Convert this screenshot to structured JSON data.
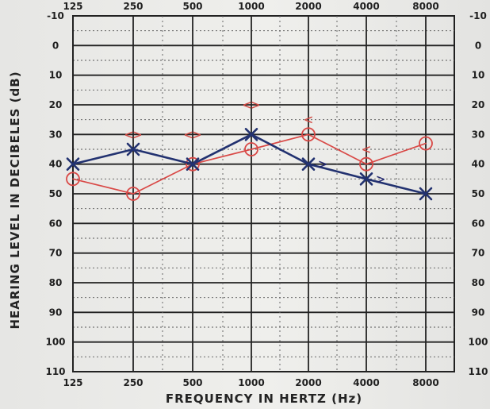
{
  "chart_data": {
    "type": "line",
    "xlabel": "FREQUENCY IN HERTZ (Hz)",
    "ylabel": "HEARING LEVEL IN DECIBELES (dB)",
    "x_ticks_top": [
      "125",
      "250",
      "500",
      "1000",
      "2000",
      "4000",
      "8000"
    ],
    "x_ticks_bottom": [
      "125",
      "250",
      "500",
      "1000",
      "2000",
      "4000",
      "8000"
    ],
    "y_ticks_left": [
      "-10",
      "0",
      "10",
      "20",
      "30",
      "40",
      "50",
      "60",
      "70",
      "80",
      "90",
      "100",
      "110"
    ],
    "y_ticks_right": [
      "-10",
      "0",
      "10",
      "20",
      "30",
      "40",
      "50",
      "60",
      "70",
      "80",
      "90",
      "100",
      "110"
    ],
    "ylim": [
      -10,
      110
    ],
    "series": [
      {
        "marker": "circle",
        "color": "#d94a46",
        "x": [
          125,
          250,
          500,
          1000,
          2000,
          4000,
          8000
        ],
        "y": [
          45,
          50,
          40,
          35,
          30,
          40,
          33
        ]
      },
      {
        "marker": "x",
        "color": "#223070",
        "x": [
          125,
          250,
          500,
          1000,
          2000,
          4000,
          8000
        ],
        "y": [
          40,
          35,
          40,
          30,
          40,
          45,
          50
        ]
      }
    ],
    "annotations": [
      {
        "text": "<>",
        "x": 250,
        "y": 30,
        "color": "#d24a44"
      },
      {
        "text": "<>",
        "x": 500,
        "y": 30,
        "color": "#d24a44"
      },
      {
        "text": "<>",
        "x": 1000,
        "y": 20,
        "color": "#d24a44"
      },
      {
        "text": "<",
        "x": 2000,
        "y": 25,
        "color": "#d24a44"
      },
      {
        "text": "<",
        "x": 4000,
        "y": 35,
        "color": "#d24a44"
      },
      {
        "text": ">",
        "x": 2000,
        "y": 40,
        "color": "#22286f"
      },
      {
        "text": ">",
        "x": 4000,
        "y": 45,
        "color": "#22286f"
      }
    ]
  }
}
